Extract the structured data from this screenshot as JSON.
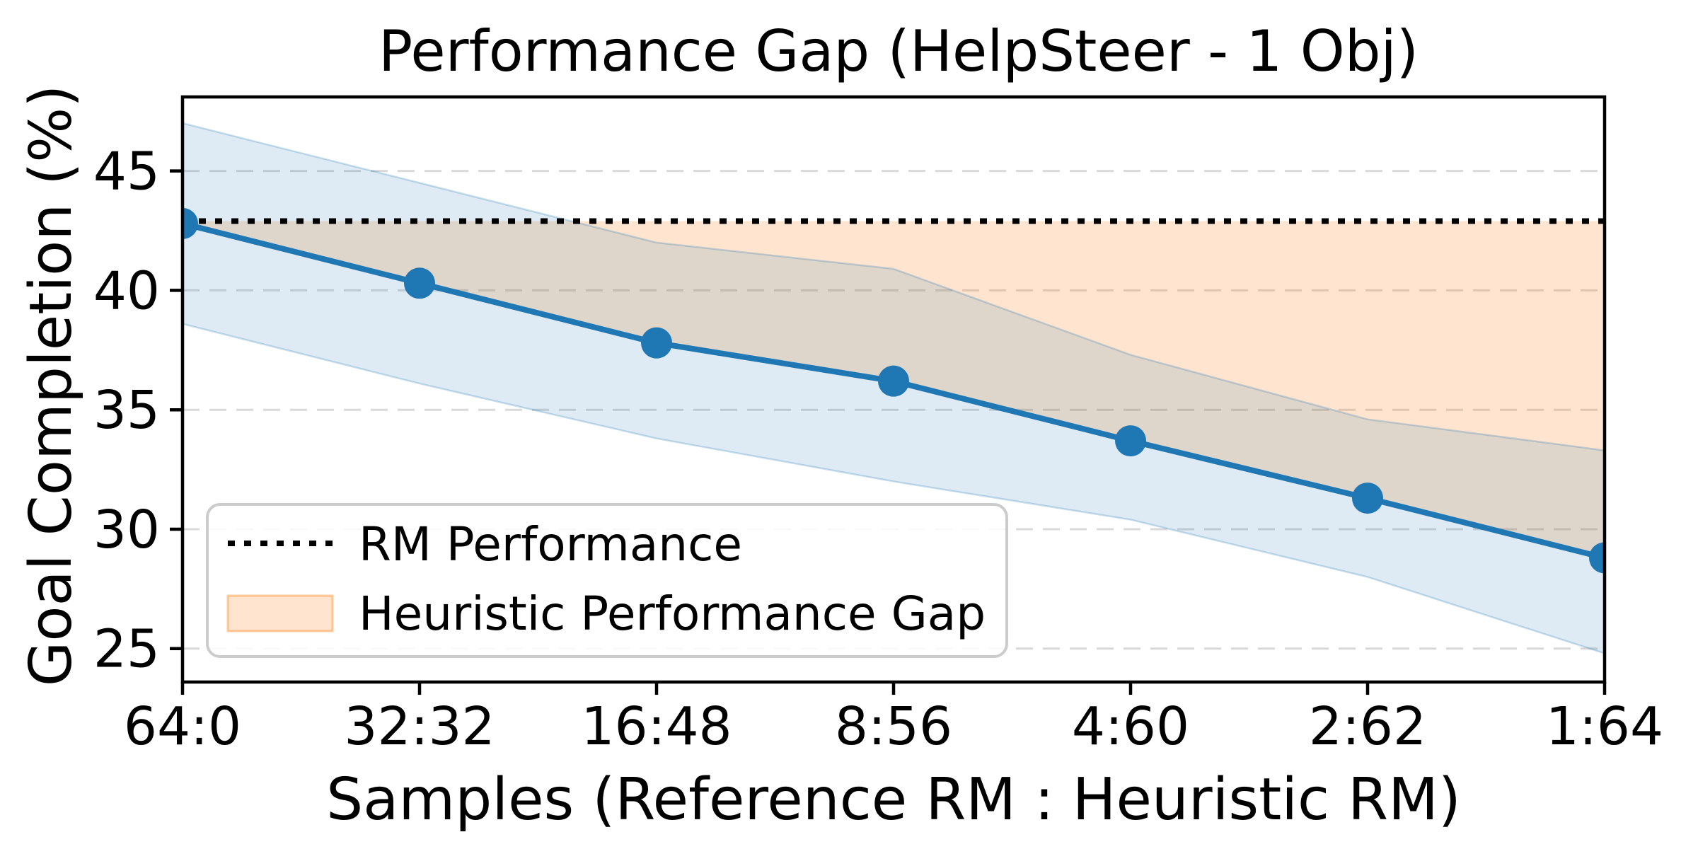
{
  "figure": {
    "kind": "matplotlib-style line chart",
    "background": "#ffffff"
  },
  "chart_data": {
    "type": "line",
    "title": "Performance Gap (HelpSteer - 1 Obj)",
    "xlabel": "Samples (Reference RM : Heuristic RM)",
    "ylabel": "Goal Completion (%)",
    "categories": [
      "64:0",
      "32:32",
      "16:48",
      "8:56",
      "4:60",
      "2:62",
      "1:64"
    ],
    "series": [
      {
        "name": "Goal Completion",
        "type": "line-with-markers",
        "values": [
          42.8,
          40.3,
          37.8,
          36.2,
          33.7,
          31.3,
          28.8
        ],
        "band_upper": [
          47.0,
          44.5,
          42.0,
          40.9,
          37.3,
          34.6,
          33.3
        ],
        "band_lower": [
          38.6,
          36.1,
          33.8,
          32.0,
          30.4,
          28.0,
          24.8
        ]
      }
    ],
    "rm_performance": 42.9,
    "gap_band": {
      "description": "shaded region between the blue curve and the RM performance dotted line",
      "upper": 42.9,
      "lower_follows": "Goal Completion series"
    },
    "yticks": [
      25,
      30,
      35,
      40,
      45
    ],
    "ylim": [
      23.6,
      48.1
    ],
    "grid": {
      "axis": "y",
      "style": "dashed",
      "on": true
    },
    "legend": {
      "position": "lower left",
      "entries": [
        {
          "label": "RM Performance",
          "sample": "dotted-black-line"
        },
        {
          "label": "Heuristic Performance Gap",
          "sample": "orange-patch"
        }
      ]
    },
    "colors": {
      "line": "#1f77b4",
      "marker": "#1f77b4",
      "line_band_fill": "rgba(31,119,180,0.15)",
      "line_band_edge": "rgba(31,119,180,0.25)",
      "gap_fill": "rgba(255,127,14,0.20)",
      "gap_edge": "rgba(255,127,14,0.40)",
      "rm_line": "#000000",
      "grid": "#d9d9d9",
      "spine": "#000000",
      "legend_border": "#cccccc"
    }
  }
}
